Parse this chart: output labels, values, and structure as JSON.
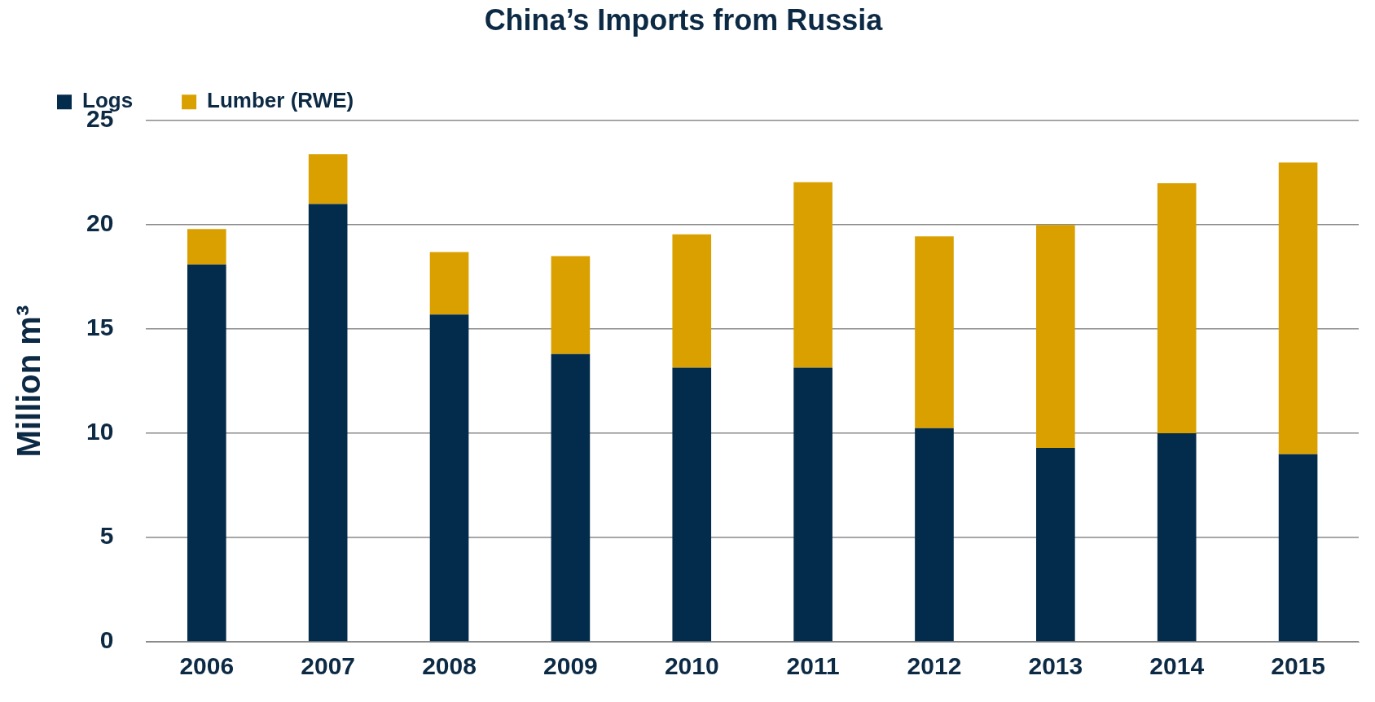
{
  "chart_data": {
    "type": "bar",
    "title": "China’s Imports from Russia",
    "ylabel": "Million m³",
    "categories": [
      "2006",
      "2007",
      "2008",
      "2009",
      "2010",
      "2011",
      "2012",
      "2013",
      "2014",
      "2015"
    ],
    "stacked": true,
    "series": [
      {
        "name": "Logs",
        "color": "#022b4c",
        "values": [
          18.1,
          21.0,
          15.7,
          13.8,
          13.15,
          13.15,
          10.25,
          9.3,
          10.0,
          9.0
        ]
      },
      {
        "name": "Lumber (RWE)",
        "color": "#d9a000",
        "values": [
          1.7,
          2.4,
          3.0,
          4.7,
          6.4,
          8.9,
          9.2,
          10.7,
          12.0,
          14.0
        ]
      }
    ],
    "ylim": [
      0,
      25
    ],
    "yticks": [
      0,
      5,
      10,
      15,
      20,
      25
    ],
    "grid": "y",
    "legend": "top left"
  }
}
